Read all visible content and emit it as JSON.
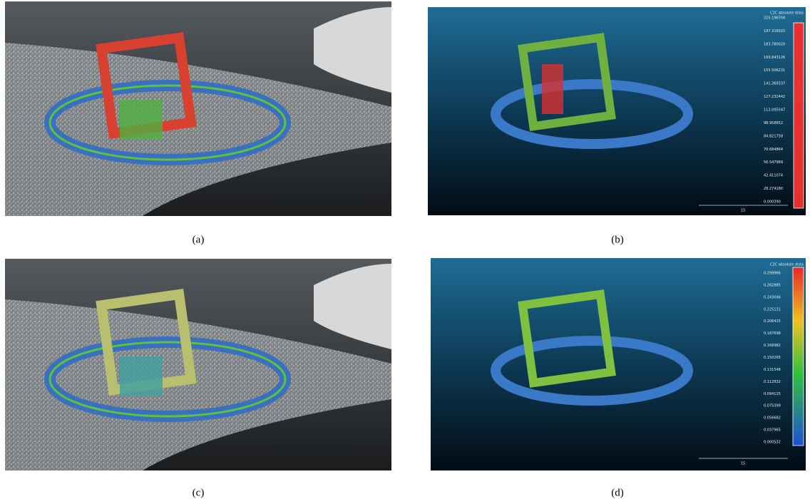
{
  "panels": [
    {
      "caption": "(a)"
    },
    {
      "caption": "(b)",
      "colorbar": {
        "title": "C2C absolute dista",
        "labels": [
          "225.196704",
          "197.316015",
          "183.780020",
          "169.843126",
          "155.506231",
          "141.369337",
          "127.232442",
          "113.095547",
          "98.958652",
          "84.821758",
          "70.684864",
          "56.547969",
          "42.411074",
          "28.274180",
          "0.000390"
        ]
      },
      "scale_label": "15"
    },
    {
      "caption": "(c)"
    },
    {
      "caption": "(d)",
      "colorbar": {
        "title": "C2C absolute dista",
        "labels": [
          "0.299966",
          "0.262885",
          "0.243046",
          "0.225131",
          "0.206415",
          "0.187698",
          "0.168982",
          "0.150265",
          "0.131548",
          "0.112832",
          "0.094115",
          "0.075399",
          "0.056682",
          "0.037965",
          "0.000532"
        ]
      },
      "scale_label": "15"
    }
  ]
}
